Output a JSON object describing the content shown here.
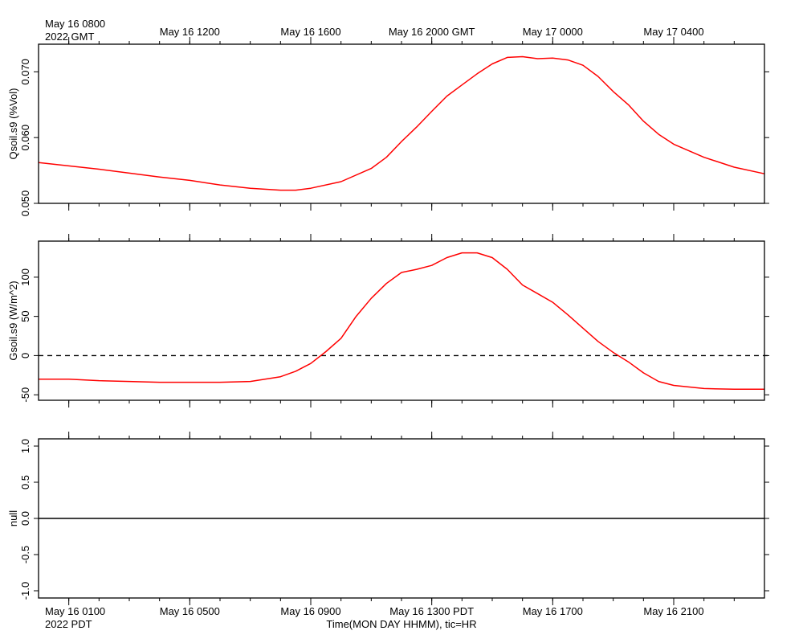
{
  "top_axis": {
    "ticks": [
      {
        "hour": 0,
        "label": "May 16 0800"
      },
      {
        "hour": 4,
        "label": "May 16 1200"
      },
      {
        "hour": 8,
        "label": "May 16 1600"
      },
      {
        "hour": 12,
        "label": "May 16 2000 GMT"
      },
      {
        "hour": 16,
        "label": "May 17 0000"
      },
      {
        "hour": 20,
        "label": "May 17 0400"
      }
    ],
    "year_label": "2022 GMT"
  },
  "bottom_axis": {
    "ticks": [
      {
        "hour": 0,
        "label": "May 16 0100"
      },
      {
        "hour": 4,
        "label": "May 16 0500"
      },
      {
        "hour": 8,
        "label": "May 16 0900"
      },
      {
        "hour": 12,
        "label": "May 16 1300 PDT"
      },
      {
        "hour": 16,
        "label": "May 16 1700"
      },
      {
        "hour": 20,
        "label": "May 16 2100"
      }
    ],
    "year_label": "2022 PDT",
    "title": "Time(MON DAY HHMM), tic=HR"
  },
  "chart_data": [
    {
      "type": "line",
      "ylabel": "Qsoil.s9 (%Vol)",
      "xlim": [
        -1,
        23
      ],
      "ylim": [
        0.05,
        0.0742
      ],
      "yticks": [
        0.05,
        0.06,
        0.07
      ],
      "ytick_labels": [
        "0.050",
        "0.060",
        "0.070"
      ],
      "series": [
        {
          "color": "#ff0000",
          "x": [
            -1,
            0,
            1,
            2,
            3,
            4,
            5,
            6,
            7,
            7.5,
            8,
            9,
            10,
            10.5,
            11,
            11.5,
            12,
            12.5,
            13,
            13.5,
            14,
            14.5,
            15,
            15.5,
            16,
            16.5,
            17,
            17.5,
            18,
            18.5,
            19,
            19.5,
            20,
            21,
            22,
            23
          ],
          "y": [
            0.0562,
            0.0557,
            0.0552,
            0.0546,
            0.054,
            0.0535,
            0.0528,
            0.0523,
            0.052,
            0.052,
            0.0523,
            0.0533,
            0.0553,
            0.057,
            0.0594,
            0.0616,
            0.064,
            0.0663,
            0.068,
            0.0697,
            0.0712,
            0.0722,
            0.0723,
            0.072,
            0.0721,
            0.0718,
            0.071,
            0.0693,
            0.067,
            0.065,
            0.0625,
            0.0605,
            0.059,
            0.057,
            0.0555,
            0.0545
          ]
        }
      ]
    },
    {
      "type": "line",
      "ylabel": "Gsoil.s9 (W/m^2)",
      "xlim": [
        -1,
        23
      ],
      "ylim": [
        -57,
        146
      ],
      "yticks": [
        -50,
        0,
        50,
        100
      ],
      "ytick_labels": [
        "-50",
        "0",
        "50",
        "100"
      ],
      "reference_line": {
        "y": 0,
        "style": "dashed"
      },
      "series": [
        {
          "color": "#ff0000",
          "x": [
            -1,
            0,
            1,
            2,
            3,
            4,
            5,
            6,
            7,
            7.5,
            8,
            8.5,
            9,
            9.5,
            10,
            10.5,
            11,
            11.5,
            12,
            12.5,
            13,
            13.5,
            14,
            14.5,
            15,
            15.5,
            16,
            16.5,
            17,
            17.5,
            18,
            18.5,
            19,
            19.5,
            20,
            21,
            22,
            23
          ],
          "y": [
            -30,
            -30,
            -32,
            -33,
            -34,
            -34,
            -34,
            -33,
            -27,
            -20,
            -10,
            5,
            22,
            50,
            73,
            92,
            106,
            110,
            115,
            125,
            131,
            131,
            125,
            110,
            90,
            79,
            68,
            52,
            35,
            18,
            4,
            -8,
            -22,
            -33,
            -38,
            -42,
            -43,
            -43
          ]
        }
      ]
    },
    {
      "type": "line",
      "ylabel": "null",
      "xlim": [
        -1,
        23
      ],
      "ylim": [
        -1.1,
        1.1
      ],
      "yticks": [
        -1.0,
        -0.5,
        0.0,
        0.5,
        1.0
      ],
      "ytick_labels": [
        "-1.0",
        "-0.5",
        "0.0",
        "0.5",
        "1.0"
      ],
      "reference_line": {
        "y": 0,
        "style": "solid"
      },
      "series": []
    }
  ]
}
